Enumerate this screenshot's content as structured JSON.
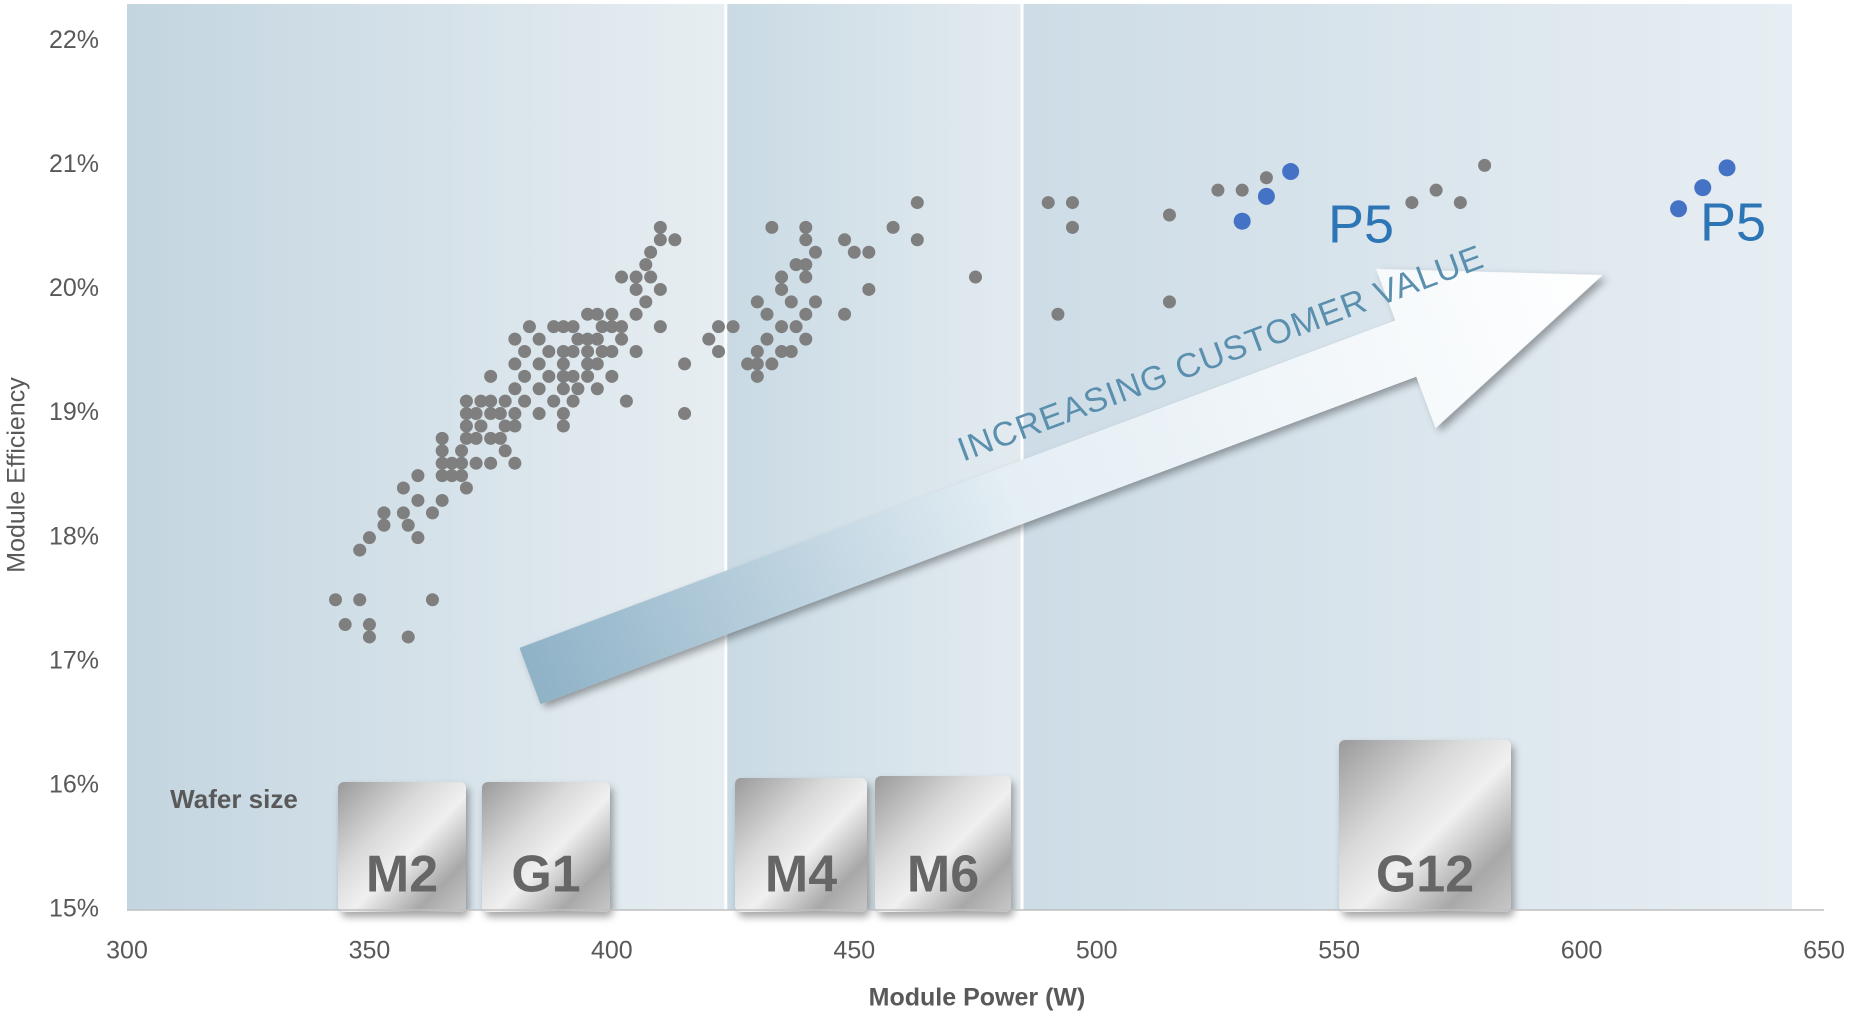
{
  "chart_data": {
    "type": "scatter",
    "x_label": "Module Power (W)",
    "y_label": "Module Efficiency",
    "xlim": [
      300,
      650
    ],
    "ylim": [
      15,
      22.3
    ],
    "xticks": [
      300,
      350,
      400,
      450,
      500,
      550,
      600,
      650
    ],
    "yticks": [
      {
        "value": 15,
        "label": "15%"
      },
      {
        "value": 16,
        "label": "16%"
      },
      {
        "value": 17,
        "label": "17%"
      },
      {
        "value": 18,
        "label": "18%"
      },
      {
        "value": 19,
        "label": "19%"
      },
      {
        "value": 20,
        "label": "20%"
      },
      {
        "value": 21,
        "label": "21%"
      },
      {
        "value": 22,
        "label": "22%"
      }
    ],
    "bands": [
      [
        300,
        423.5
      ],
      [
        423.5,
        484.6
      ],
      [
        484.6,
        643.4
      ]
    ],
    "series": [
      {
        "color": "#7f7f7f",
        "x": [
          343,
          345,
          348,
          348,
          350,
          350,
          350,
          353,
          353,
          357,
          357,
          358,
          358,
          360,
          360,
          360,
          363,
          363,
          365,
          365,
          365,
          365,
          365,
          367,
          367,
          369,
          369,
          369,
          370,
          370,
          370,
          370,
          370,
          372,
          372,
          372,
          373,
          373,
          375,
          375,
          375,
          375,
          375,
          377,
          377,
          378,
          378,
          378,
          380,
          380,
          380,
          380,
          380,
          380,
          382,
          382,
          382,
          383,
          385,
          385,
          385,
          385,
          387,
          387,
          388,
          388,
          390,
          390,
          390,
          390,
          390,
          390,
          390,
          392,
          392,
          392,
          392,
          393,
          393,
          395,
          395,
          395,
          395,
          395,
          397,
          397,
          397,
          397,
          398,
          398,
          400,
          400,
          400,
          400,
          402,
          402,
          402,
          403,
          405,
          405,
          405,
          405,
          407,
          407,
          408,
          408,
          410,
          410,
          410,
          410,
          413,
          415,
          415,
          420,
          422,
          422,
          425,
          428,
          430,
          430,
          430,
          430,
          432,
          432,
          433,
          433,
          435,
          435,
          435,
          435,
          437,
          437,
          438,
          438,
          440,
          440,
          440,
          440,
          440,
          440,
          442,
          442,
          448,
          448,
          450,
          453,
          453,
          458,
          463,
          463,
          475,
          490,
          492,
          495,
          495,
          515,
          515,
          525,
          530,
          535,
          565,
          570,
          575,
          580
        ],
        "values": [
          17.5,
          17.3,
          17.5,
          17.9,
          17.3,
          17.2,
          18.0,
          18.1,
          18.2,
          18.2,
          18.4,
          17.2,
          18.1,
          18.0,
          18.3,
          18.5,
          17.5,
          18.2,
          18.3,
          18.5,
          18.6,
          18.7,
          18.8,
          18.5,
          18.6,
          18.5,
          18.6,
          18.7,
          18.4,
          18.8,
          18.9,
          19.0,
          19.1,
          18.6,
          18.8,
          19.0,
          18.9,
          19.1,
          18.6,
          18.8,
          19.0,
          19.1,
          19.3,
          18.8,
          19.0,
          18.7,
          18.9,
          19.1,
          18.6,
          18.9,
          19.0,
          19.2,
          19.4,
          19.6,
          19.1,
          19.3,
          19.5,
          19.7,
          19.0,
          19.2,
          19.4,
          19.6,
          19.3,
          19.5,
          19.1,
          19.7,
          18.9,
          19.0,
          19.2,
          19.3,
          19.4,
          19.5,
          19.7,
          19.1,
          19.3,
          19.5,
          19.7,
          19.2,
          19.6,
          19.3,
          19.4,
          19.5,
          19.6,
          19.8,
          19.2,
          19.4,
          19.6,
          19.8,
          19.5,
          19.7,
          19.3,
          19.5,
          19.7,
          19.8,
          19.6,
          19.7,
          20.1,
          19.1,
          19.5,
          19.8,
          20.0,
          20.1,
          19.9,
          20.2,
          20.3,
          20.1,
          19.7,
          20.0,
          20.4,
          20.5,
          20.4,
          19.0,
          19.4,
          19.6,
          19.5,
          19.7,
          19.7,
          19.4,
          19.3,
          19.4,
          19.5,
          19.9,
          19.6,
          19.8,
          19.4,
          20.5,
          19.5,
          19.7,
          20.0,
          20.1,
          19.5,
          19.9,
          19.7,
          20.2,
          19.6,
          19.8,
          20.1,
          20.2,
          20.4,
          20.5,
          19.9,
          20.3,
          19.8,
          20.4,
          20.3,
          20.0,
          20.3,
          20.5,
          20.4,
          20.7,
          20.1,
          20.7,
          19.8,
          20.5,
          20.7,
          19.9,
          20.6,
          20.8,
          20.8,
          20.9,
          20.7,
          20.8,
          20.7,
          21.0
        ]
      },
      {
        "color": "#4472c4",
        "x": [
          530,
          535,
          540,
          620,
          625,
          630
        ],
        "values": [
          20.55,
          20.75,
          20.95,
          20.65,
          20.82,
          20.98
        ]
      }
    ],
    "annotations": [
      "P5",
      "P5",
      "INCREASING CUSTOMER VALUE"
    ],
    "wafer_title": "Wafer size",
    "wafers": [
      "M2",
      "G1",
      "M4",
      "M6",
      "G12"
    ]
  }
}
